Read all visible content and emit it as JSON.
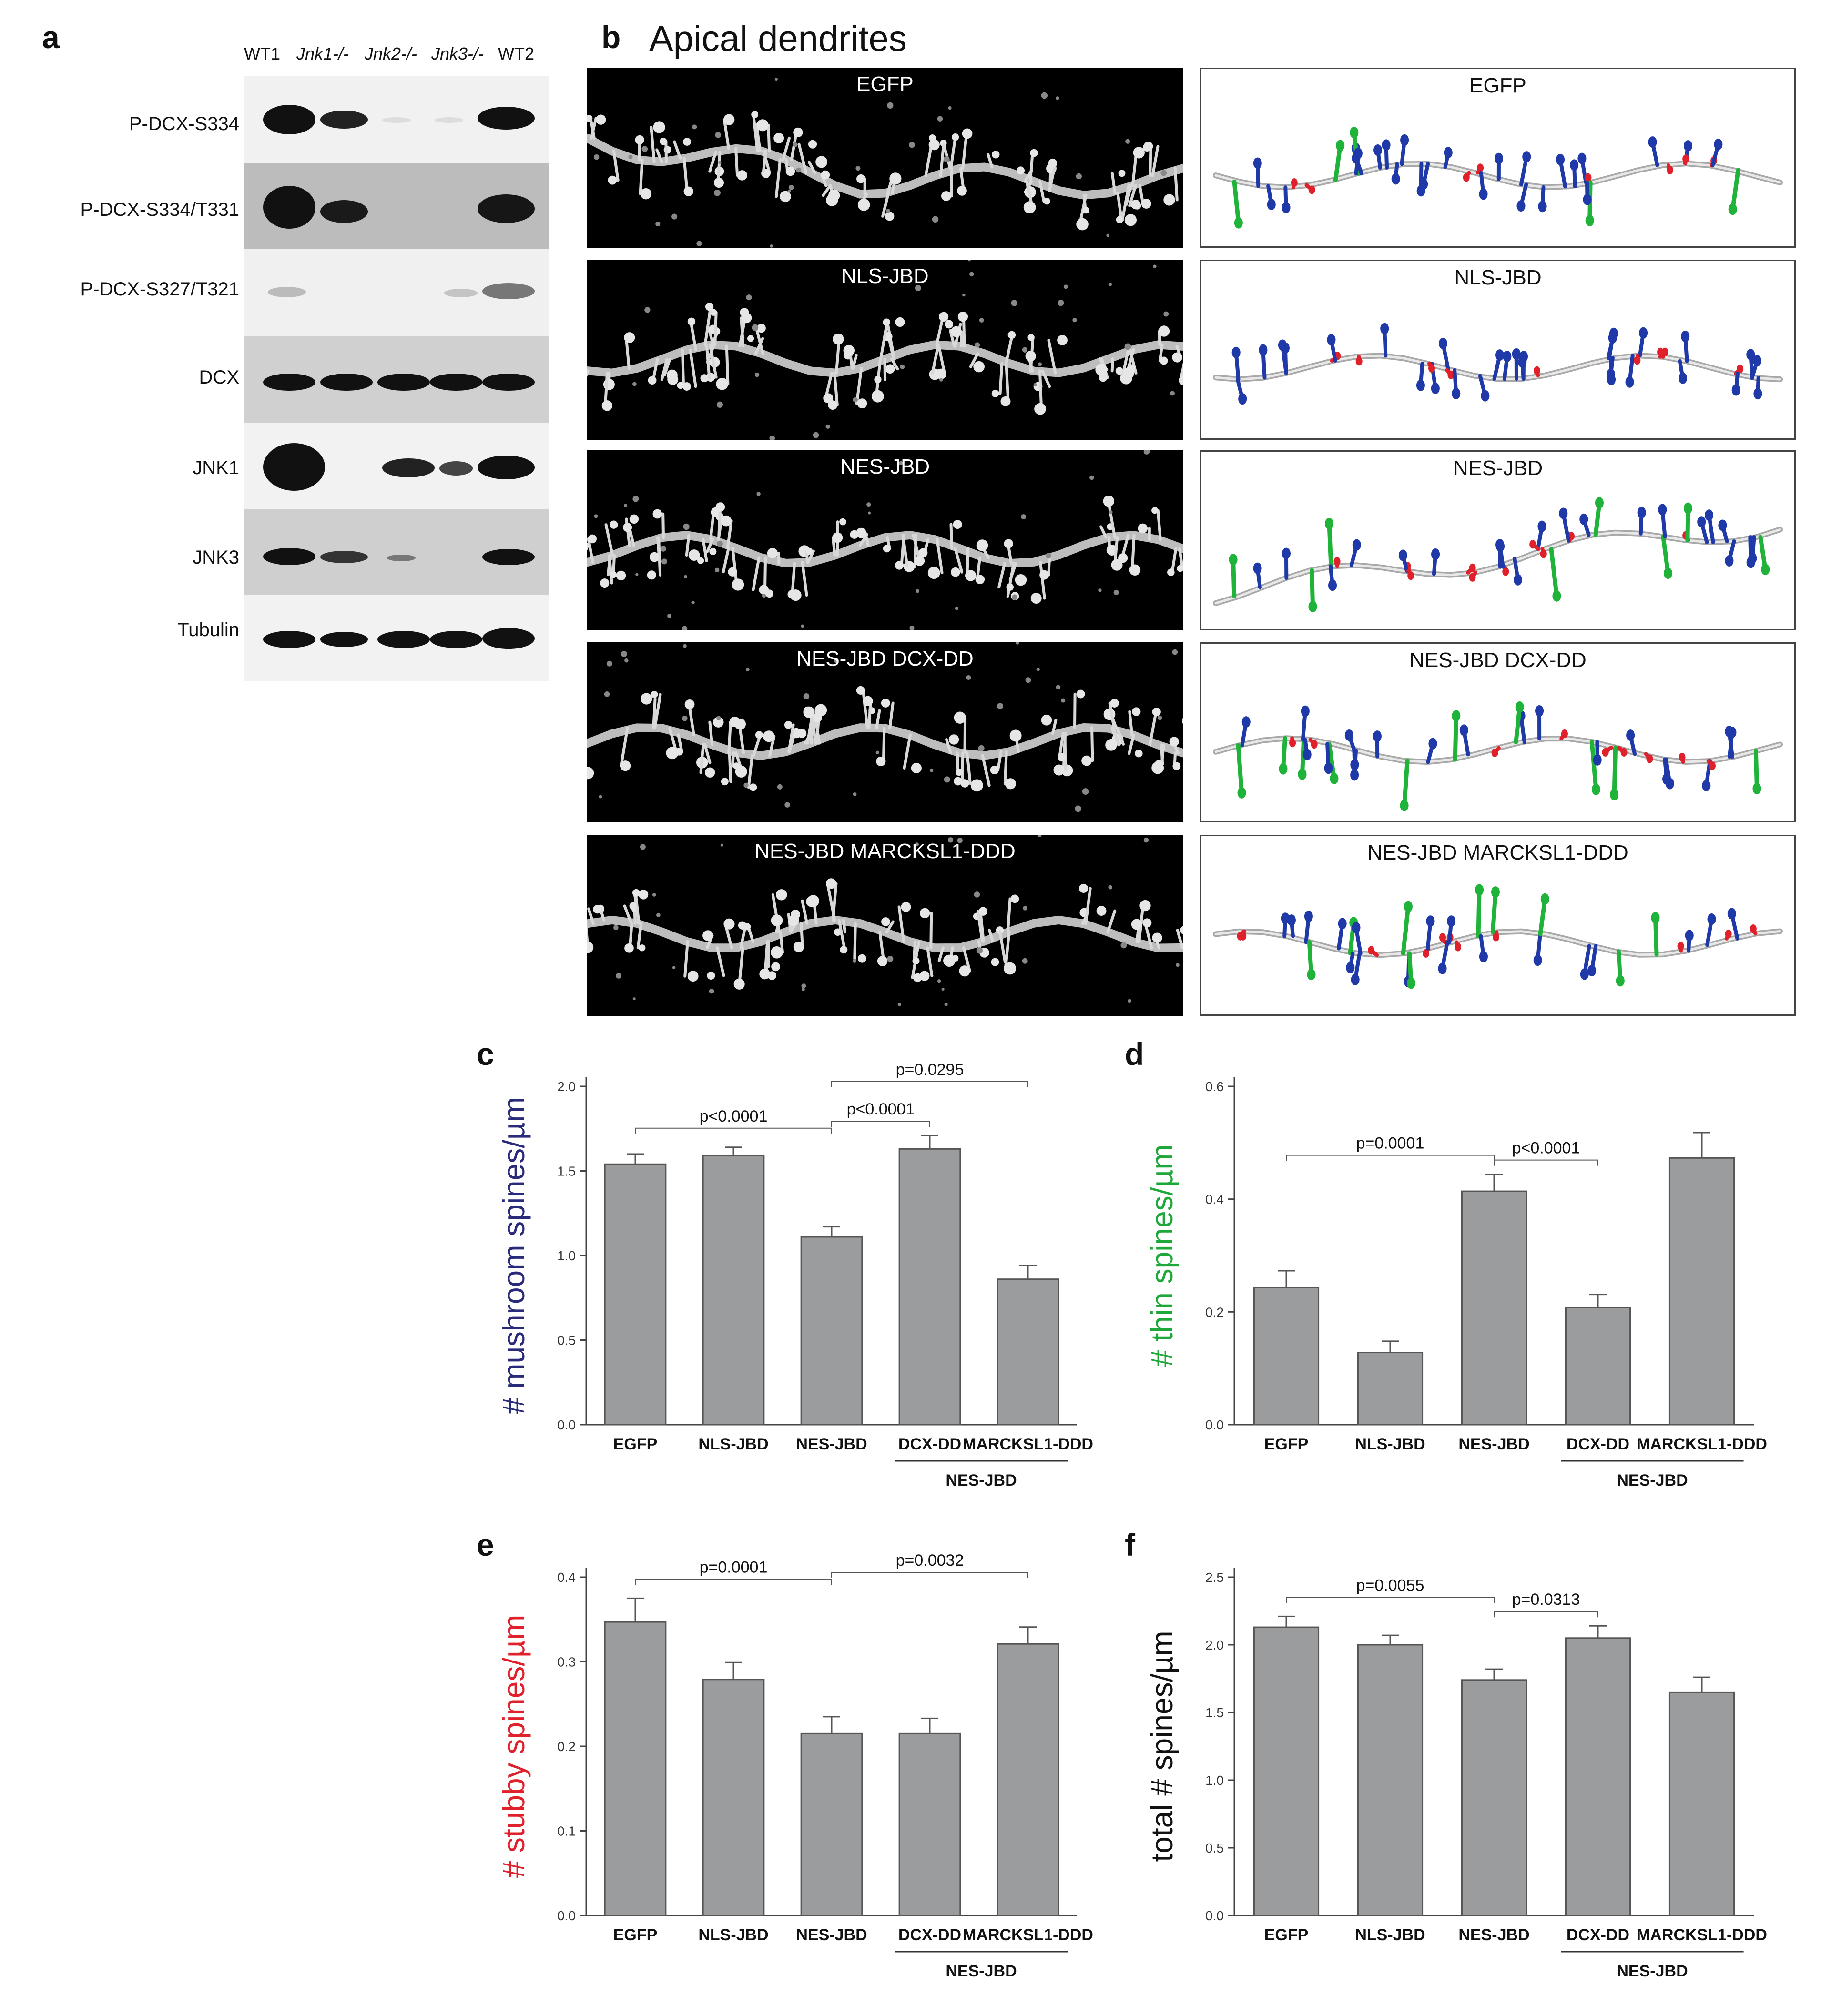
{
  "panel_a": {
    "letter": "a",
    "lanes": [
      "WT1",
      "Jnk1-/-",
      "Jnk2-/-",
      "Jnk3-/-",
      "WT2"
    ],
    "rows": [
      "P-DCX-S334",
      "P-DCX-S334/T331",
      "P-DCX-S327/T321",
      "DCX",
      "JNK1",
      "JNK3",
      "Tubulin"
    ]
  },
  "panel_b": {
    "letter": "b",
    "title": "Apical dendrites",
    "conditions": [
      "EGFP",
      "NLS-JBD",
      "NES-JBD",
      "NES-JBD DCX-DD",
      "NES-JBD MARCKSL1-DDD"
    ],
    "spine_colors": {
      "mushroom": "#1f3aa8",
      "thin": "#1fb33a",
      "stubby": "#e0202a"
    }
  },
  "chart_data": [
    {
      "panel": "c",
      "type": "bar",
      "ylabel": "# mushroom spines/µm",
      "ylabel_color": "#2a2a7a",
      "categories": [
        "EGFP",
        "NLS-JBD",
        "NES-JBD",
        "DCX-DD",
        "MARCKSL1-DDD"
      ],
      "values": [
        1.54,
        1.59,
        1.11,
        1.63,
        0.86
      ],
      "errors": [
        0.06,
        0.05,
        0.06,
        0.08,
        0.08
      ],
      "ylim": [
        0,
        2.0
      ],
      "yticks": [
        "0.0",
        "0.5",
        "1.0",
        "1.5",
        "2.0"
      ],
      "group_label": "NES-JBD",
      "comparisons": [
        {
          "from": 0,
          "to": 2,
          "label": "p<0.0001"
        },
        {
          "from": 2,
          "to": 3,
          "label": "p<0.0001"
        },
        {
          "from": 2,
          "to": 4,
          "label": "p=0.0295"
        }
      ]
    },
    {
      "panel": "d",
      "type": "bar",
      "ylabel": "# thin spines/µm",
      "ylabel_color": "#1fa83a",
      "categories": [
        "EGFP",
        "NLS-JBD",
        "NES-JBD",
        "DCX-DD",
        "MARCKSL1-DDD"
      ],
      "values": [
        0.243,
        0.128,
        0.414,
        0.208,
        0.473
      ],
      "errors": [
        0.03,
        0.02,
        0.03,
        0.023,
        0.045
      ],
      "ylim": [
        0,
        0.6
      ],
      "yticks": [
        "0.0",
        "0.2",
        "0.4",
        "0.6"
      ],
      "group_label": "NES-JBD",
      "comparisons": [
        {
          "from": 0,
          "to": 2,
          "label": "p=0.0001"
        },
        {
          "from": 2,
          "to": 3,
          "label": "p<0.0001"
        }
      ]
    },
    {
      "panel": "e",
      "type": "bar",
      "ylabel": "# stubby spines/µm",
      "ylabel_color": "#e0202a",
      "categories": [
        "EGFP",
        "NLS-JBD",
        "NES-JBD",
        "DCX-DD",
        "MARCKSL1-DDD"
      ],
      "values": [
        0.347,
        0.279,
        0.215,
        0.215,
        0.321
      ],
      "errors": [
        0.028,
        0.02,
        0.02,
        0.018,
        0.02
      ],
      "ylim": [
        0,
        0.4
      ],
      "yticks": [
        "0.0",
        "0.1",
        "0.2",
        "0.3",
        "0.4"
      ],
      "group_label": "NES-JBD",
      "comparisons": [
        {
          "from": 0,
          "to": 2,
          "label": "p=0.0001"
        },
        {
          "from": 2,
          "to": 4,
          "label": "p=0.0032"
        }
      ]
    },
    {
      "panel": "f",
      "type": "bar",
      "ylabel": "total # spines/µm",
      "ylabel_color": "#111111",
      "categories": [
        "EGFP",
        "NLS-JBD",
        "NES-JBD",
        "DCX-DD",
        "MARCKSL1-DDD"
      ],
      "values": [
        2.13,
        2.0,
        1.74,
        2.05,
        1.65
      ],
      "errors": [
        0.08,
        0.07,
        0.08,
        0.09,
        0.11
      ],
      "ylim": [
        0,
        2.5
      ],
      "yticks": [
        "0.0",
        "0.5",
        "1.0",
        "1.5",
        "2.0",
        "2.5"
      ],
      "group_label": "NES-JBD",
      "comparisons": [
        {
          "from": 0,
          "to": 2,
          "label": "p=0.0055"
        },
        {
          "from": 2,
          "to": 3,
          "label": "p=0.0313"
        }
      ]
    }
  ]
}
